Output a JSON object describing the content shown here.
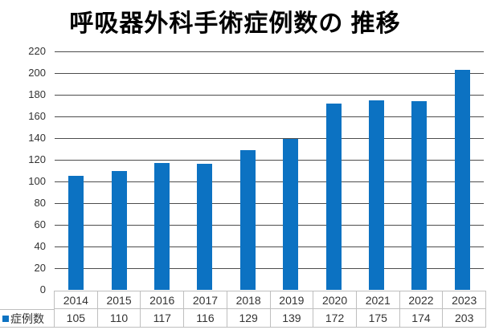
{
  "chart_data": {
    "type": "bar",
    "title": "呼吸器外科手術症例数の 推移",
    "categories": [
      "2014",
      "2015",
      "2016",
      "2017",
      "2018",
      "2019",
      "2020",
      "2021",
      "2022",
      "2023"
    ],
    "series": [
      {
        "name": "症例数",
        "values": [
          105,
          110,
          117,
          116,
          129,
          139,
          172,
          175,
          174,
          203
        ]
      }
    ],
    "xlabel": "",
    "ylabel": "",
    "ylim": [
      0,
      220
    ],
    "ytick_step": 20,
    "yticks": [
      0,
      20,
      40,
      60,
      80,
      100,
      120,
      140,
      160,
      180,
      200,
      220
    ],
    "grid": true,
    "legend_position": "bottom-left",
    "data_table_shown": true,
    "colors": {
      "bar": "#0c72c2",
      "gridline": "#4d4d4d",
      "table_border": "#bfbfbf",
      "text": "#333333",
      "title": "#000000",
      "background": "#ffffff"
    }
  }
}
